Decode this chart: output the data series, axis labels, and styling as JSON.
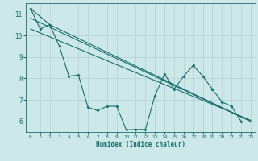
{
  "xlabel": "Humidex (Indice chaleur)",
  "bg_color": "#cce8e8",
  "grid_color": "#b8d4d4",
  "line_color": "#1a6e6e",
  "xlim": [
    -0.5,
    23.5
  ],
  "ylim": [
    5.5,
    11.5
  ],
  "yticks": [
    6,
    7,
    8,
    9,
    10,
    11
  ],
  "xticks": [
    0,
    1,
    2,
    3,
    4,
    5,
    6,
    7,
    8,
    9,
    10,
    11,
    12,
    13,
    14,
    15,
    16,
    17,
    18,
    19,
    20,
    21,
    22,
    23
  ],
  "series1_x": [
    0,
    1,
    2,
    3,
    4,
    5,
    6,
    7,
    8,
    9,
    10,
    11,
    12,
    13,
    14,
    15,
    16,
    17,
    18,
    19,
    20,
    21,
    22
  ],
  "series1_y": [
    11.25,
    10.3,
    10.5,
    9.5,
    8.1,
    8.15,
    6.65,
    6.5,
    6.7,
    6.7,
    5.6,
    5.62,
    5.62,
    7.2,
    8.2,
    7.5,
    8.1,
    8.6,
    8.1,
    7.5,
    6.9,
    6.7,
    6.0
  ],
  "series2_x": [
    0,
    23
  ],
  "series2_y": [
    10.8,
    6.0
  ],
  "series3_x": [
    0,
    23
  ],
  "series3_y": [
    10.3,
    6.05
  ],
  "series4_x": [
    0,
    2,
    23
  ],
  "series4_y": [
    11.25,
    10.5,
    6.0
  ]
}
